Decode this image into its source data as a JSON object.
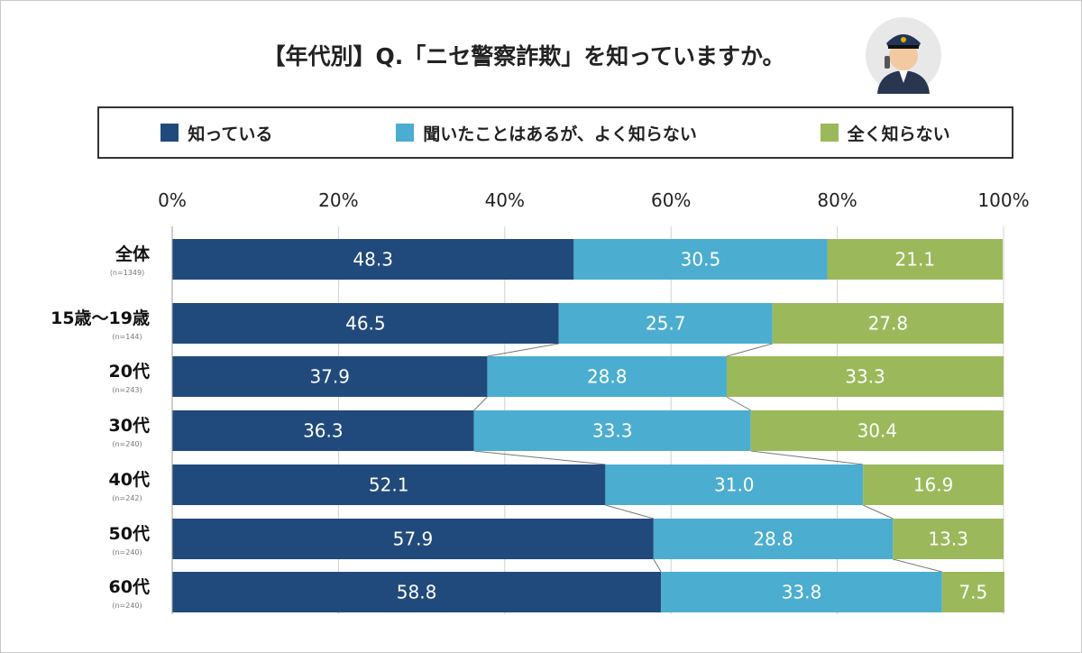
{
  "chart_data": {
    "type": "bar",
    "stacked": true,
    "orientation": "horizontal",
    "title": "【年代別】Q.「ニセ警察詐欺」を知っていますか。",
    "categories": [
      "全体",
      "15歳〜19歳",
      "20代",
      "30代",
      "40代",
      "50代",
      "60代"
    ],
    "sample_sizes": [
      "(n=1349)",
      "(n=144)",
      "(n=243)",
      "(n=240)",
      "(n=242)",
      "(n=240)",
      "(n=240)"
    ],
    "series": [
      {
        "name": "知っている",
        "color": "#214a7c",
        "values": [
          48.3,
          46.5,
          37.9,
          36.3,
          52.1,
          57.9,
          58.8
        ]
      },
      {
        "name": "聞いたことはあるが、よく知らない",
        "color": "#4badcf",
        "values": [
          30.5,
          25.7,
          28.8,
          33.3,
          31.0,
          28.8,
          33.8
        ]
      },
      {
        "name": "全く知らない",
        "color": "#9bb95a",
        "values": [
          21.1,
          27.8,
          33.3,
          30.4,
          16.9,
          13.3,
          7.5
        ]
      }
    ],
    "xlim": [
      0,
      100
    ],
    "xticks": [
      "0%",
      "20%",
      "40%",
      "60%",
      "80%",
      "100%"
    ],
    "grid": true,
    "legend_position": "top"
  },
  "icon": "police-officer-icon"
}
